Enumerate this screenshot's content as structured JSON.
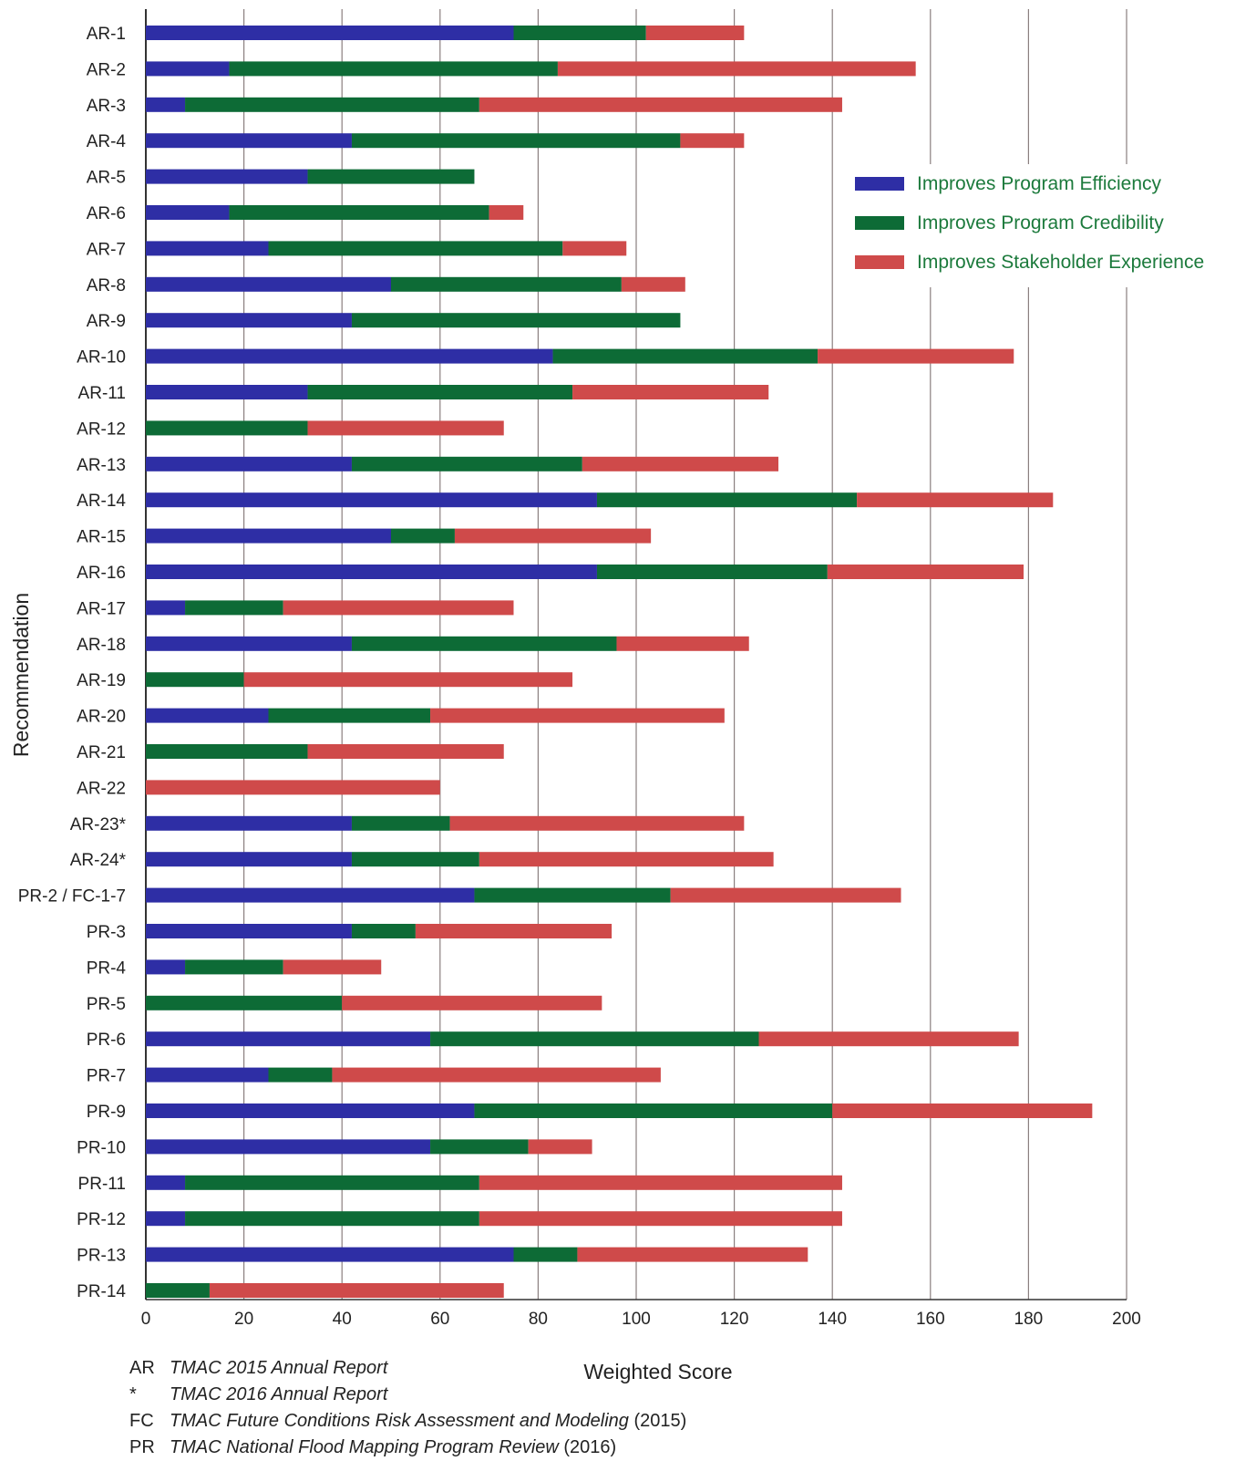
{
  "chart_data": {
    "type": "bar",
    "orientation": "horizontal",
    "stacked": true,
    "title": "",
    "xlabel": "Weighted Score",
    "ylabel": "Recommendation",
    "xlim": [
      0,
      200
    ],
    "xticks": [
      0,
      20,
      40,
      60,
      80,
      100,
      120,
      140,
      160,
      180,
      200
    ],
    "grid": "vertical",
    "legend_position": "top-right",
    "categories": [
      "AR-1",
      "AR-2",
      "AR-3",
      "AR-4",
      "AR-5",
      "AR-6",
      "AR-7",
      "AR-8",
      "AR-9",
      "AR-10",
      "AR-11",
      "AR-12",
      "AR-13",
      "AR-14",
      "AR-15",
      "AR-16",
      "AR-17",
      "AR-18",
      "AR-19",
      "AR-20",
      "AR-21",
      "AR-22",
      "AR-23*",
      "AR-24*",
      "PR-2 / FC-1-7",
      "PR-3",
      "PR-4",
      "PR-5",
      "PR-6",
      "PR-7",
      "PR-9",
      "PR-10",
      "PR-11",
      "PR-12",
      "PR-13",
      "PR-14"
    ],
    "series": [
      {
        "name": "Improves Program Efficiency",
        "color": "#2e2ea5",
        "values": [
          75,
          17,
          8,
          42,
          33,
          17,
          25,
          50,
          42,
          83,
          33,
          0,
          42,
          92,
          50,
          92,
          8,
          42,
          0,
          25,
          0,
          0,
          42,
          42,
          67,
          42,
          8,
          0,
          58,
          25,
          67,
          58,
          8,
          8,
          75,
          0
        ]
      },
      {
        "name": "Improves Program Credibility",
        "color": "#0d6b36",
        "values": [
          27,
          67,
          60,
          67,
          34,
          53,
          60,
          47,
          67,
          54,
          54,
          33,
          47,
          53,
          13,
          47,
          20,
          54,
          20,
          33,
          33,
          0,
          20,
          26,
          40,
          13,
          20,
          40,
          67,
          13,
          73,
          20,
          60,
          60,
          13,
          13
        ]
      },
      {
        "name": "Improves Stakeholder Experience",
        "color": "#cf4a4a",
        "values": [
          20,
          73,
          74,
          13,
          0,
          7,
          13,
          13,
          0,
          40,
          40,
          40,
          40,
          40,
          40,
          40,
          47,
          27,
          67,
          60,
          40,
          60,
          60,
          60,
          47,
          40,
          20,
          53,
          53,
          67,
          53,
          13,
          74,
          74,
          47,
          60
        ]
      }
    ]
  },
  "footnotes": [
    {
      "key": "AR",
      "text": "TMAC 2015 Annual Report",
      "suffix": ""
    },
    {
      "key": "*",
      "text": "TMAC 2016 Annual Report",
      "suffix": ""
    },
    {
      "key": "FC",
      "text": "TMAC Future Conditions Risk Assessment and Modeling",
      "suffix": " (2015)"
    },
    {
      "key": "PR",
      "text": "TMAC National Flood Mapping Program Review",
      "suffix": " (2016)"
    }
  ]
}
